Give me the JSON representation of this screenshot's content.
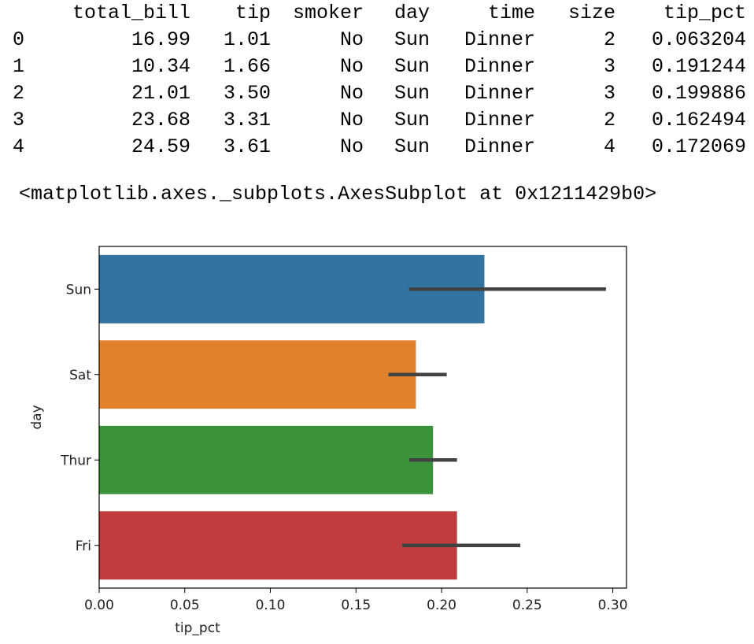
{
  "dataframe": {
    "columns": [
      "",
      "total_bill",
      "tip",
      "smoker",
      "day",
      "time",
      "size",
      "tip_pct"
    ],
    "rows": [
      [
        "0",
        "16.99",
        "1.01",
        "No",
        "Sun",
        "Dinner",
        "2",
        "0.063204"
      ],
      [
        "1",
        "10.34",
        "1.66",
        "No",
        "Sun",
        "Dinner",
        "3",
        "0.191244"
      ],
      [
        "2",
        "21.01",
        "3.50",
        "No",
        "Sun",
        "Dinner",
        "3",
        "0.199886"
      ],
      [
        "3",
        "23.68",
        "3.31",
        "No",
        "Sun",
        "Dinner",
        "2",
        "0.162494"
      ],
      [
        "4",
        "24.59",
        "3.61",
        "No",
        "Sun",
        "Dinner",
        "4",
        "0.172069"
      ]
    ]
  },
  "output_repr": "<matplotlib.axes._subplots.AxesSubplot at 0x1211429b0>",
  "chart_data": {
    "type": "bar",
    "orientation": "horizontal",
    "categories": [
      "Sun",
      "Sat",
      "Thur",
      "Fri"
    ],
    "values": [
      0.225,
      0.185,
      0.195,
      0.209
    ],
    "error_intervals": [
      [
        0.181,
        0.296
      ],
      [
        0.169,
        0.203
      ],
      [
        0.181,
        0.209
      ],
      [
        0.177,
        0.246
      ]
    ],
    "colors": [
      "#3274a1",
      "#e1812c",
      "#3a923a",
      "#c03d3e"
    ],
    "error_color": "#424242",
    "xlabel": "tip_pct",
    "ylabel": "day",
    "xlim": [
      0,
      0.308
    ],
    "xticks": [
      0.0,
      0.05,
      0.1,
      0.15,
      0.2,
      0.25,
      0.3
    ],
    "xtick_labels": [
      "0.00",
      "0.05",
      "0.10",
      "0.15",
      "0.20",
      "0.25",
      "0.30"
    ],
    "grid": false
  }
}
